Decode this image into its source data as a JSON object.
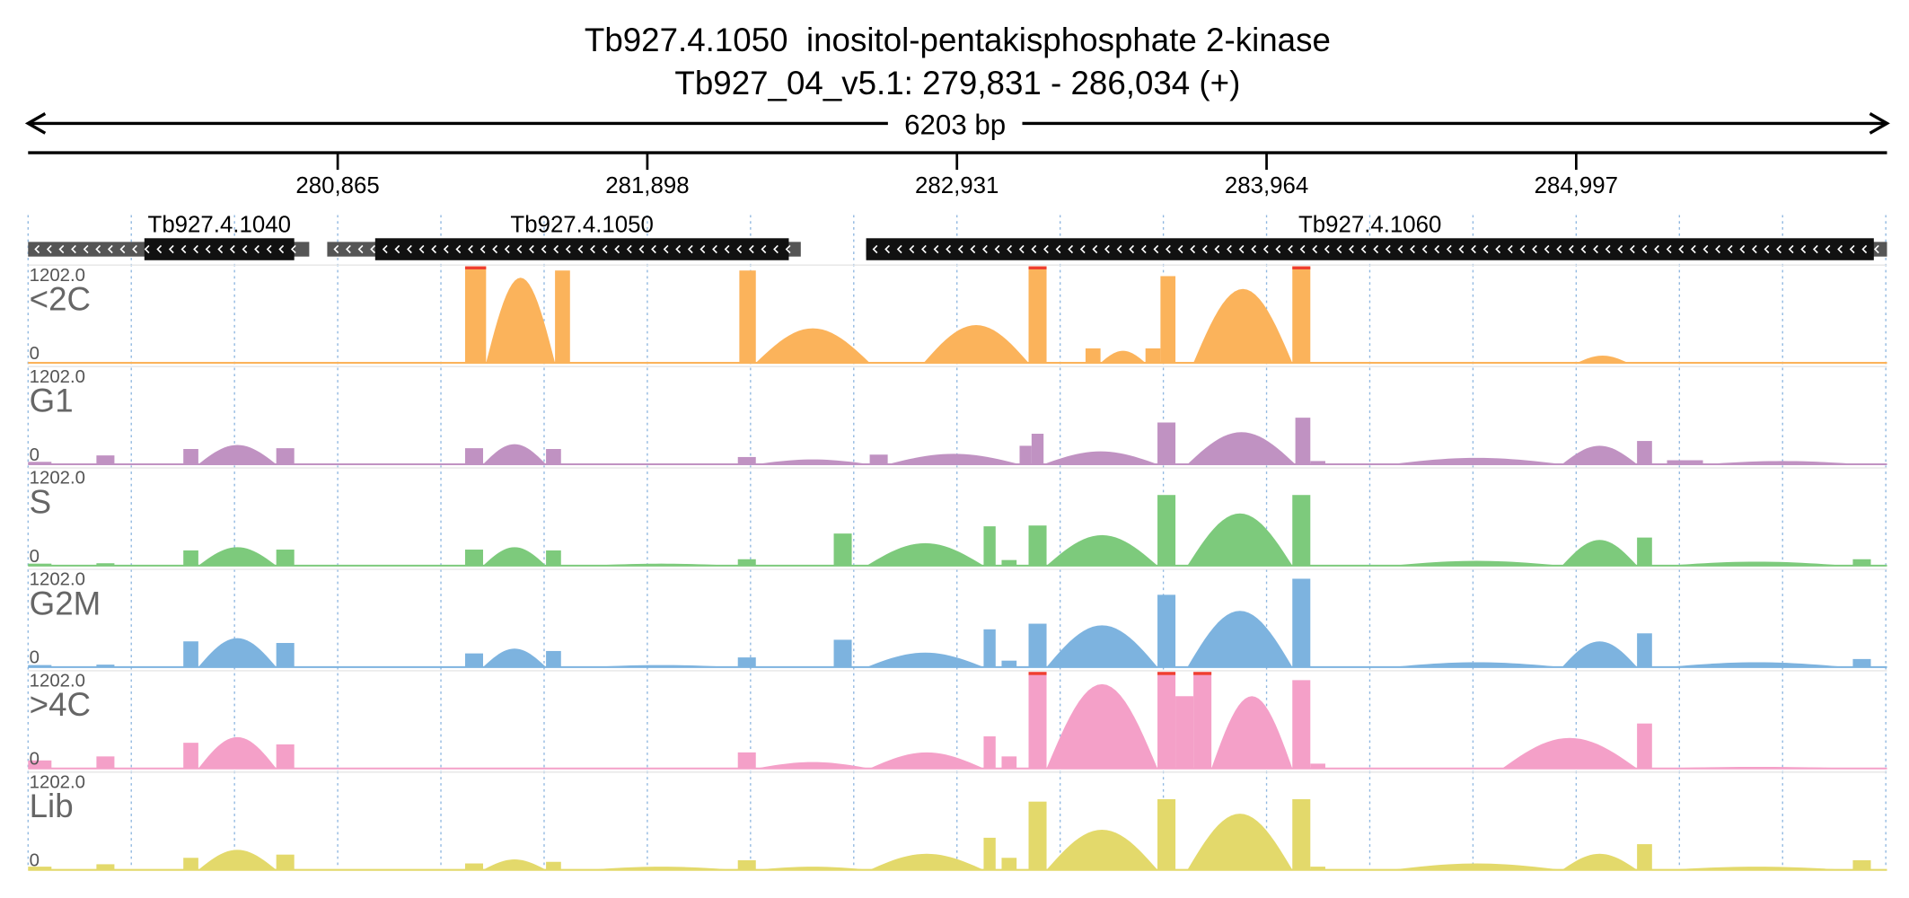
{
  "header": {
    "title_line1": "Tb927.4.1050  inositol-pentakisphosphate 2-kinase",
    "title_line2": "Tb927_04_v5.1: 279,831 - 286,034 (+)"
  },
  "chart_data": {
    "type": "area",
    "chromosome": "Tb927_04_v5.1",
    "strand": "+",
    "xlim": [
      279832,
      286034
    ],
    "span_label": "6203 bp",
    "x_ticks": [
      {
        "value": 280865,
        "label": "280,865"
      },
      {
        "value": 281898,
        "label": "281,898"
      },
      {
        "value": 282931,
        "label": "282,931"
      },
      {
        "value": 283964,
        "label": "283,964"
      },
      {
        "value": 284997,
        "label": "284,997"
      }
    ],
    "genes": [
      {
        "name": "Tb927.4.1040",
        "utr_start": 279832,
        "start": 280220,
        "end": 280720,
        "utr_end": 280770,
        "direction": "-"
      },
      {
        "name": "Tb927.4.1050",
        "utr_start": 280830,
        "start": 280990,
        "end": 282370,
        "utr_end": 282410,
        "direction": "-"
      },
      {
        "name": "Tb927.4.1060",
        "utr_start": 282628,
        "start": 282628,
        "end": 285990,
        "utr_end": 286034,
        "direction": "-"
      }
    ],
    "y_max_label": "1202.0",
    "y_min_label": "0",
    "ylim": [
      0,
      1202
    ],
    "series": [
      {
        "name": "<2C",
        "color": "#fbb35b",
        "clip_color": "#ef3f2f",
        "segments": [
          {
            "x0": 281290,
            "x1": 281360,
            "shape": "flat",
            "v": 1202
          },
          {
            "x0": 281360,
            "x1": 281590,
            "shape": "hump",
            "v": 1060
          },
          {
            "x0": 281590,
            "x1": 281640,
            "shape": "flat",
            "v": 1150
          },
          {
            "x0": 282205,
            "x1": 282260,
            "shape": "flat",
            "v": 1150
          },
          {
            "x0": 282260,
            "x1": 282640,
            "shape": "hump",
            "v": 430
          },
          {
            "x0": 282820,
            "x1": 283170,
            "shape": "hump",
            "v": 470
          },
          {
            "x0": 283170,
            "x1": 283230,
            "shape": "flat",
            "v": 1202
          },
          {
            "x0": 283360,
            "x1": 283410,
            "shape": "flat",
            "v": 180
          },
          {
            "x0": 283410,
            "x1": 283560,
            "shape": "hump",
            "v": 150
          },
          {
            "x0": 283560,
            "x1": 283610,
            "shape": "flat",
            "v": 180
          },
          {
            "x0": 283610,
            "x1": 283660,
            "shape": "flat",
            "v": 1080
          },
          {
            "x0": 283720,
            "x1": 284050,
            "shape": "hump",
            "v": 920
          },
          {
            "x0": 284050,
            "x1": 284110,
            "shape": "flat",
            "v": 1202
          },
          {
            "x0": 285000,
            "x1": 285170,
            "shape": "hump",
            "v": 90
          }
        ]
      },
      {
        "name": "G1",
        "color": "#c092c2",
        "clip_color": "#ef3f2f",
        "segments": [
          {
            "x0": 279832,
            "x1": 279910,
            "shape": "flat",
            "v": 30
          },
          {
            "x0": 280060,
            "x1": 280120,
            "shape": "flat",
            "v": 110
          },
          {
            "x0": 280350,
            "x1": 280400,
            "shape": "flat",
            "v": 190
          },
          {
            "x0": 280400,
            "x1": 280660,
            "shape": "hump",
            "v": 240
          },
          {
            "x0": 280660,
            "x1": 280720,
            "shape": "flat",
            "v": 200
          },
          {
            "x0": 281290,
            "x1": 281350,
            "shape": "flat",
            "v": 200
          },
          {
            "x0": 281350,
            "x1": 281560,
            "shape": "hump",
            "v": 250
          },
          {
            "x0": 281560,
            "x1": 281610,
            "shape": "flat",
            "v": 190
          },
          {
            "x0": 282200,
            "x1": 282260,
            "shape": "flat",
            "v": 90
          },
          {
            "x0": 282260,
            "x1": 282640,
            "shape": "hump",
            "v": 60
          },
          {
            "x0": 282640,
            "x1": 282700,
            "shape": "flat",
            "v": 120
          },
          {
            "x0": 282700,
            "x1": 283140,
            "shape": "hump",
            "v": 130
          },
          {
            "x0": 283140,
            "x1": 283180,
            "shape": "flat",
            "v": 230
          },
          {
            "x0": 283180,
            "x1": 283220,
            "shape": "flat",
            "v": 380
          },
          {
            "x0": 283220,
            "x1": 283600,
            "shape": "hump",
            "v": 160
          },
          {
            "x0": 283600,
            "x1": 283660,
            "shape": "flat",
            "v": 520
          },
          {
            "x0": 283700,
            "x1": 284060,
            "shape": "hump",
            "v": 400
          },
          {
            "x0": 284060,
            "x1": 284110,
            "shape": "flat",
            "v": 580
          },
          {
            "x0": 284110,
            "x1": 284160,
            "shape": "flat",
            "v": 40
          },
          {
            "x0": 284380,
            "x1": 284950,
            "shape": "hump",
            "v": 80
          },
          {
            "x0": 284950,
            "x1": 285200,
            "shape": "hump",
            "v": 230
          },
          {
            "x0": 285200,
            "x1": 285250,
            "shape": "flat",
            "v": 290
          },
          {
            "x0": 285300,
            "x1": 285420,
            "shape": "flat",
            "v": 50
          },
          {
            "x0": 285420,
            "x1": 285950,
            "shape": "hump",
            "v": 40
          }
        ]
      },
      {
        "name": "S",
        "color": "#7dca7c",
        "clip_color": "#ef3f2f",
        "segments": [
          {
            "x0": 279832,
            "x1": 279910,
            "shape": "flat",
            "v": 25
          },
          {
            "x0": 280060,
            "x1": 280120,
            "shape": "flat",
            "v": 30
          },
          {
            "x0": 280350,
            "x1": 280400,
            "shape": "flat",
            "v": 190
          },
          {
            "x0": 280400,
            "x1": 280660,
            "shape": "hump",
            "v": 230
          },
          {
            "x0": 280660,
            "x1": 280720,
            "shape": "flat",
            "v": 200
          },
          {
            "x0": 281290,
            "x1": 281350,
            "shape": "flat",
            "v": 200
          },
          {
            "x0": 281350,
            "x1": 281560,
            "shape": "hump",
            "v": 230
          },
          {
            "x0": 281560,
            "x1": 281610,
            "shape": "flat",
            "v": 190
          },
          {
            "x0": 281700,
            "x1": 282190,
            "shape": "hump",
            "v": 25
          },
          {
            "x0": 282200,
            "x1": 282260,
            "shape": "flat",
            "v": 80
          },
          {
            "x0": 282520,
            "x1": 282580,
            "shape": "flat",
            "v": 400
          },
          {
            "x0": 282630,
            "x1": 283020,
            "shape": "hump",
            "v": 280
          },
          {
            "x0": 283020,
            "x1": 283060,
            "shape": "flat",
            "v": 490
          },
          {
            "x0": 283080,
            "x1": 283130,
            "shape": "flat",
            "v": 70
          },
          {
            "x0": 283170,
            "x1": 283230,
            "shape": "flat",
            "v": 500
          },
          {
            "x0": 283230,
            "x1": 283600,
            "shape": "hump",
            "v": 380
          },
          {
            "x0": 283600,
            "x1": 283660,
            "shape": "flat",
            "v": 880
          },
          {
            "x0": 283700,
            "x1": 284050,
            "shape": "hump",
            "v": 650
          },
          {
            "x0": 284050,
            "x1": 284110,
            "shape": "flat",
            "v": 880
          },
          {
            "x0": 284380,
            "x1": 284950,
            "shape": "hump",
            "v": 60
          },
          {
            "x0": 284950,
            "x1": 285200,
            "shape": "hump",
            "v": 320
          },
          {
            "x0": 285200,
            "x1": 285250,
            "shape": "flat",
            "v": 350
          },
          {
            "x0": 285300,
            "x1": 285900,
            "shape": "hump",
            "v": 50
          },
          {
            "x0": 285920,
            "x1": 285980,
            "shape": "flat",
            "v": 80
          }
        ]
      },
      {
        "name": "G2M",
        "color": "#7db3df",
        "clip_color": "#ef3f2f",
        "segments": [
          {
            "x0": 279832,
            "x1": 279910,
            "shape": "flat",
            "v": 25
          },
          {
            "x0": 280060,
            "x1": 280120,
            "shape": "flat",
            "v": 30
          },
          {
            "x0": 280350,
            "x1": 280400,
            "shape": "flat",
            "v": 320
          },
          {
            "x0": 280400,
            "x1": 280660,
            "shape": "hump",
            "v": 360
          },
          {
            "x0": 280660,
            "x1": 280720,
            "shape": "flat",
            "v": 300
          },
          {
            "x0": 281290,
            "x1": 281350,
            "shape": "flat",
            "v": 170
          },
          {
            "x0": 281350,
            "x1": 281560,
            "shape": "hump",
            "v": 230
          },
          {
            "x0": 281560,
            "x1": 281610,
            "shape": "flat",
            "v": 200
          },
          {
            "x0": 281700,
            "x1": 282190,
            "shape": "hump",
            "v": 25
          },
          {
            "x0": 282200,
            "x1": 282260,
            "shape": "flat",
            "v": 120
          },
          {
            "x0": 282520,
            "x1": 282580,
            "shape": "flat",
            "v": 340
          },
          {
            "x0": 282630,
            "x1": 283020,
            "shape": "hump",
            "v": 180
          },
          {
            "x0": 283020,
            "x1": 283060,
            "shape": "flat",
            "v": 470
          },
          {
            "x0": 283080,
            "x1": 283130,
            "shape": "flat",
            "v": 80
          },
          {
            "x0": 283170,
            "x1": 283230,
            "shape": "flat",
            "v": 540
          },
          {
            "x0": 283230,
            "x1": 283600,
            "shape": "hump",
            "v": 520
          },
          {
            "x0": 283600,
            "x1": 283660,
            "shape": "flat",
            "v": 900
          },
          {
            "x0": 283700,
            "x1": 284050,
            "shape": "hump",
            "v": 700
          },
          {
            "x0": 284050,
            "x1": 284110,
            "shape": "flat",
            "v": 1100
          },
          {
            "x0": 284380,
            "x1": 284950,
            "shape": "hump",
            "v": 60
          },
          {
            "x0": 284950,
            "x1": 285200,
            "shape": "hump",
            "v": 320
          },
          {
            "x0": 285200,
            "x1": 285250,
            "shape": "flat",
            "v": 420
          },
          {
            "x0": 285300,
            "x1": 285900,
            "shape": "hump",
            "v": 60
          },
          {
            "x0": 285920,
            "x1": 285980,
            "shape": "flat",
            "v": 100
          }
        ]
      },
      {
        "name": ">4C",
        "color": "#f4a0c8",
        "clip_color": "#ef3f2f",
        "segments": [
          {
            "x0": 279832,
            "x1": 279910,
            "shape": "flat",
            "v": 100
          },
          {
            "x0": 280060,
            "x1": 280120,
            "shape": "flat",
            "v": 150
          },
          {
            "x0": 280350,
            "x1": 280400,
            "shape": "flat",
            "v": 320
          },
          {
            "x0": 280400,
            "x1": 280660,
            "shape": "hump",
            "v": 390
          },
          {
            "x0": 280660,
            "x1": 280720,
            "shape": "flat",
            "v": 300
          },
          {
            "x0": 282200,
            "x1": 282260,
            "shape": "flat",
            "v": 200
          },
          {
            "x0": 282260,
            "x1": 282640,
            "shape": "hump",
            "v": 80
          },
          {
            "x0": 282640,
            "x1": 283020,
            "shape": "hump",
            "v": 200
          },
          {
            "x0": 283020,
            "x1": 283060,
            "shape": "flat",
            "v": 400
          },
          {
            "x0": 283080,
            "x1": 283130,
            "shape": "flat",
            "v": 150
          },
          {
            "x0": 283170,
            "x1": 283230,
            "shape": "flat",
            "v": 1202
          },
          {
            "x0": 283230,
            "x1": 283600,
            "shape": "hump",
            "v": 1050
          },
          {
            "x0": 283600,
            "x1": 283660,
            "shape": "flat",
            "v": 1202
          },
          {
            "x0": 283660,
            "x1": 283720,
            "shape": "flat",
            "v": 900
          },
          {
            "x0": 283720,
            "x1": 283780,
            "shape": "flat",
            "v": 1202
          },
          {
            "x0": 283780,
            "x1": 284050,
            "shape": "hump",
            "v": 900
          },
          {
            "x0": 284050,
            "x1": 284110,
            "shape": "flat",
            "v": 1100
          },
          {
            "x0": 284110,
            "x1": 284160,
            "shape": "flat",
            "v": 60
          },
          {
            "x0": 284750,
            "x1": 285200,
            "shape": "hump",
            "v": 380
          },
          {
            "x0": 285200,
            "x1": 285250,
            "shape": "flat",
            "v": 560
          },
          {
            "x0": 285250,
            "x1": 285950,
            "shape": "hump",
            "v": 20
          }
        ]
      },
      {
        "name": "Lib",
        "color": "#e3d96b",
        "clip_color": "#ef3f2f",
        "segments": [
          {
            "x0": 279832,
            "x1": 279910,
            "shape": "flat",
            "v": 40
          },
          {
            "x0": 280060,
            "x1": 280120,
            "shape": "flat",
            "v": 70
          },
          {
            "x0": 280350,
            "x1": 280400,
            "shape": "flat",
            "v": 150
          },
          {
            "x0": 280400,
            "x1": 280660,
            "shape": "hump",
            "v": 250
          },
          {
            "x0": 280660,
            "x1": 280720,
            "shape": "flat",
            "v": 190
          },
          {
            "x0": 281290,
            "x1": 281350,
            "shape": "flat",
            "v": 80
          },
          {
            "x0": 281350,
            "x1": 281560,
            "shape": "hump",
            "v": 130
          },
          {
            "x0": 281560,
            "x1": 281610,
            "shape": "flat",
            "v": 100
          },
          {
            "x0": 281700,
            "x1": 282190,
            "shape": "hump",
            "v": 40
          },
          {
            "x0": 282200,
            "x1": 282260,
            "shape": "flat",
            "v": 120
          },
          {
            "x0": 282260,
            "x1": 282640,
            "shape": "hump",
            "v": 40
          },
          {
            "x0": 282640,
            "x1": 283020,
            "shape": "hump",
            "v": 200
          },
          {
            "x0": 283020,
            "x1": 283060,
            "shape": "flat",
            "v": 400
          },
          {
            "x0": 283080,
            "x1": 283130,
            "shape": "flat",
            "v": 150
          },
          {
            "x0": 283170,
            "x1": 283230,
            "shape": "flat",
            "v": 850
          },
          {
            "x0": 283230,
            "x1": 283600,
            "shape": "hump",
            "v": 500
          },
          {
            "x0": 283600,
            "x1": 283660,
            "shape": "flat",
            "v": 880
          },
          {
            "x0": 283700,
            "x1": 284050,
            "shape": "hump",
            "v": 700
          },
          {
            "x0": 284050,
            "x1": 284110,
            "shape": "flat",
            "v": 880
          },
          {
            "x0": 284110,
            "x1": 284160,
            "shape": "flat",
            "v": 40
          },
          {
            "x0": 284380,
            "x1": 284950,
            "shape": "hump",
            "v": 80
          },
          {
            "x0": 284950,
            "x1": 285200,
            "shape": "hump",
            "v": 200
          },
          {
            "x0": 285200,
            "x1": 285250,
            "shape": "flat",
            "v": 320
          },
          {
            "x0": 285300,
            "x1": 285900,
            "shape": "hump",
            "v": 40
          },
          {
            "x0": 285920,
            "x1": 285980,
            "shape": "flat",
            "v": 120
          }
        ]
      }
    ]
  }
}
